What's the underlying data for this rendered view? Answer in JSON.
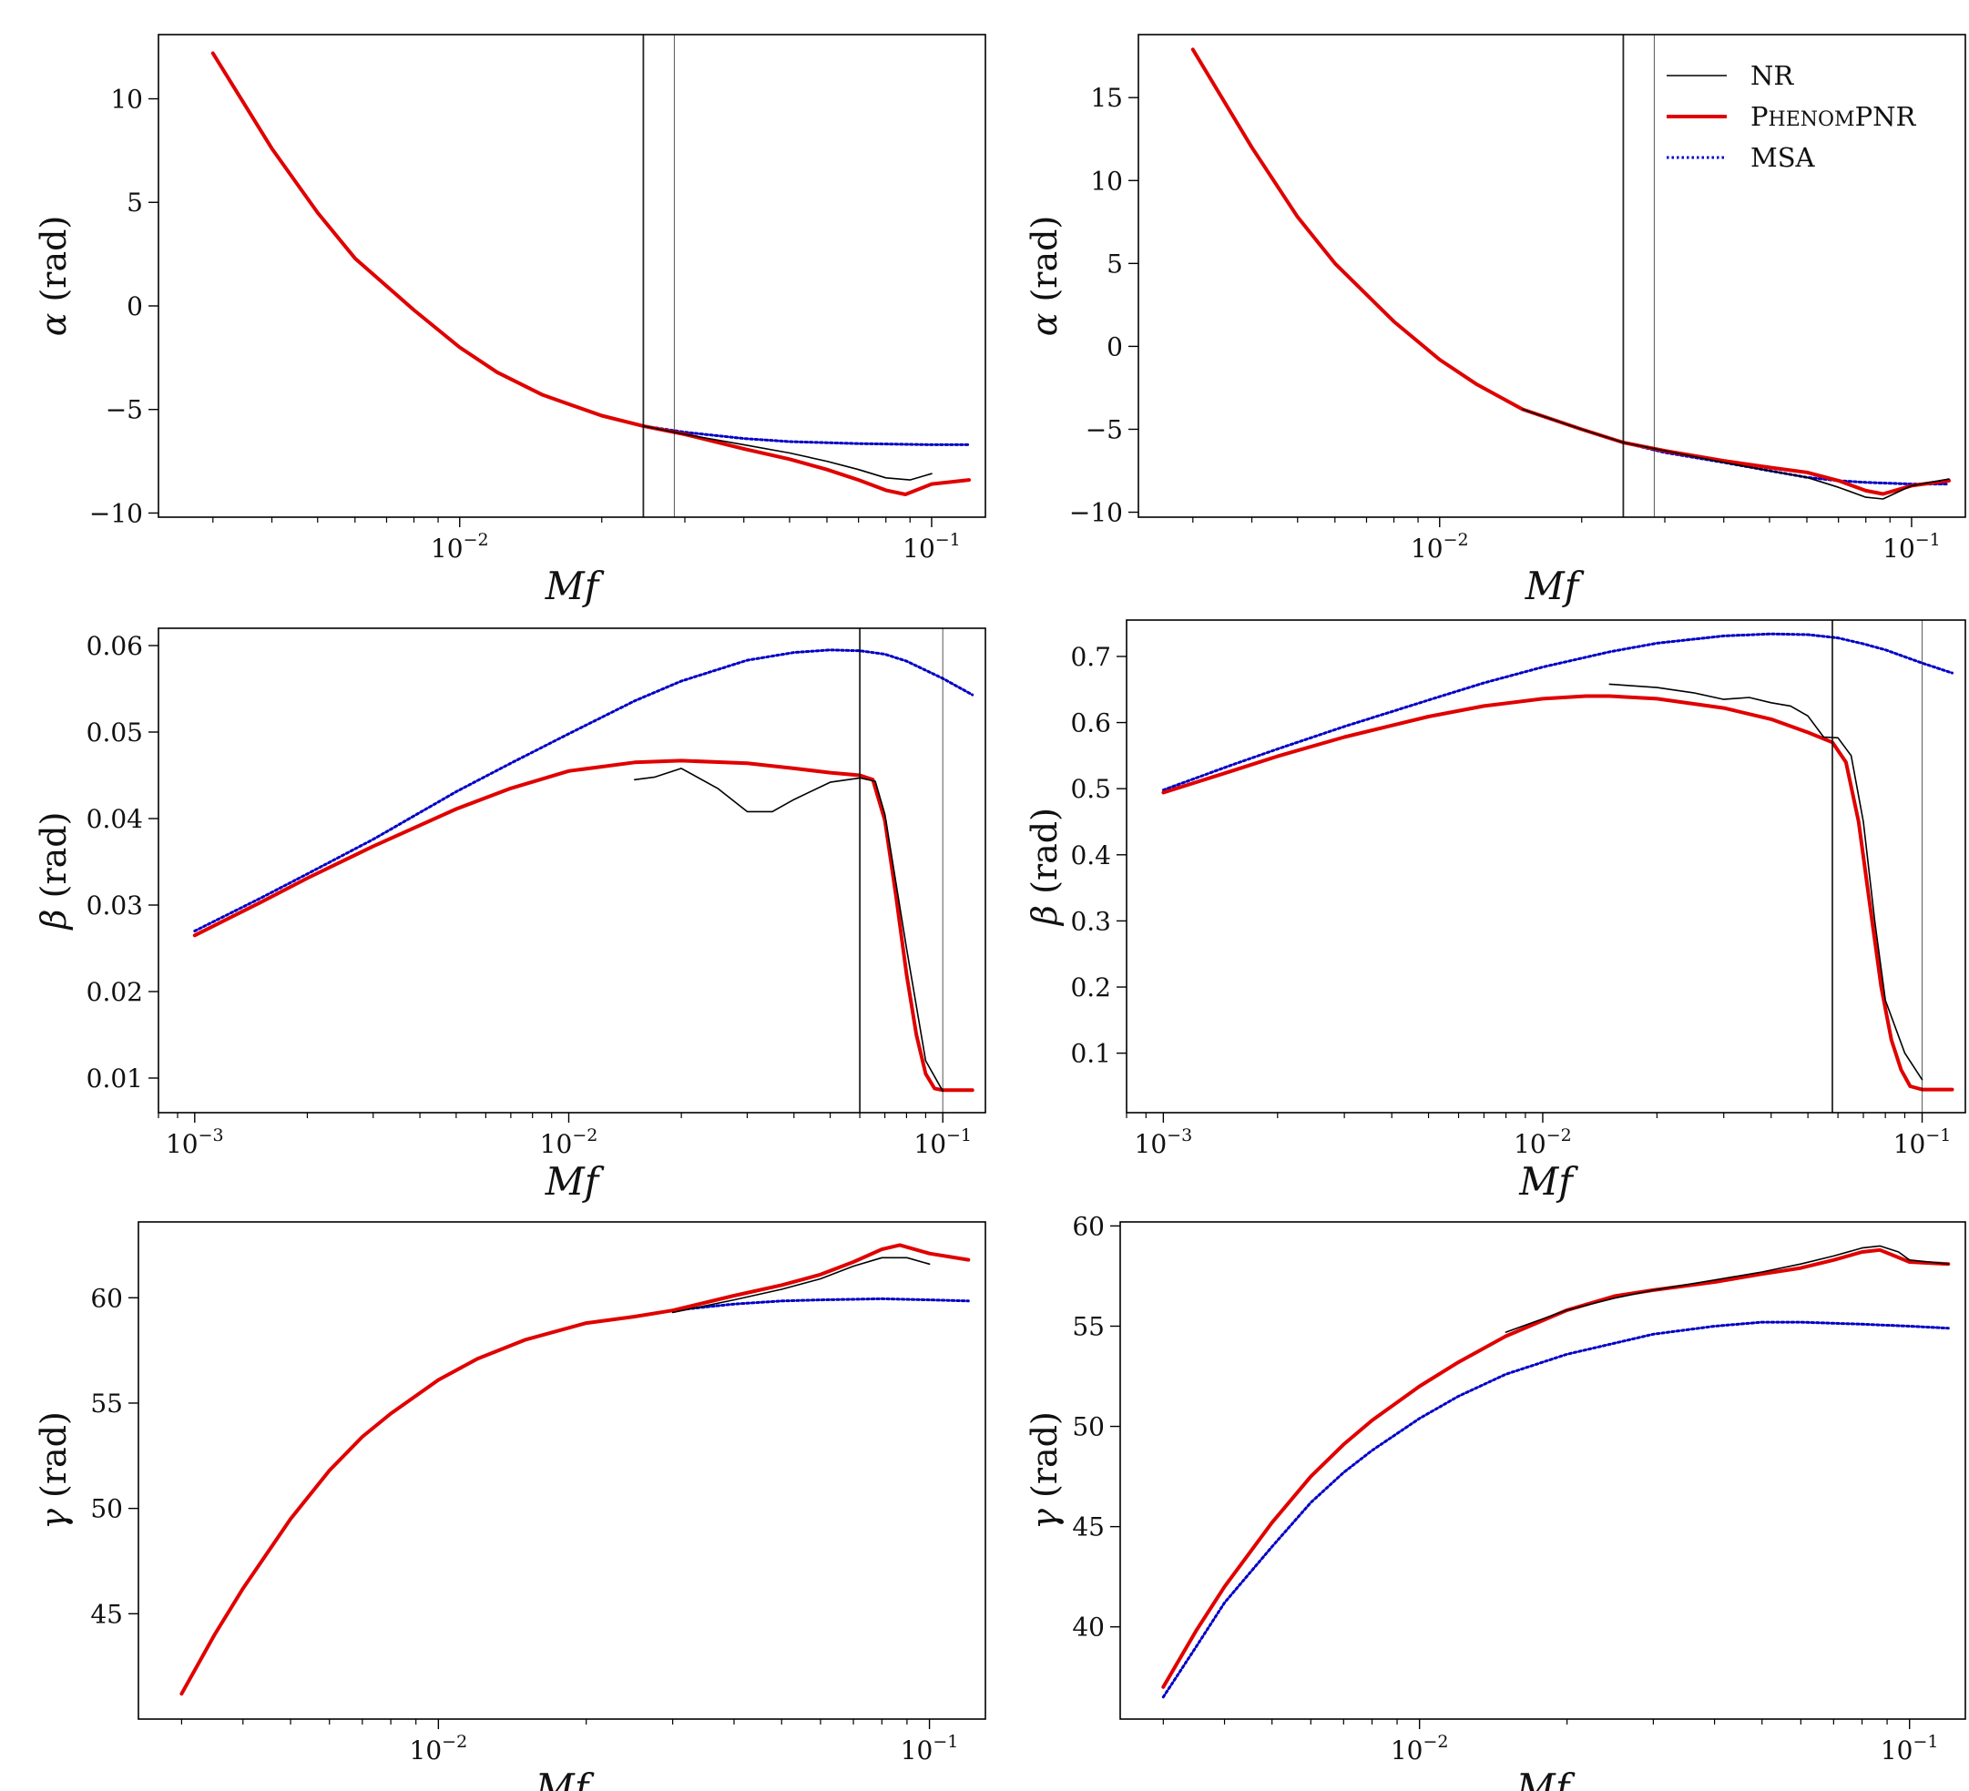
{
  "legend": {
    "entries": [
      {
        "label": "NR",
        "color": "#000000",
        "style": "solid-thin"
      },
      {
        "label": "PhenomPNR",
        "color": "#e00000",
        "style": "solid-thick"
      },
      {
        "label": "MSA",
        "color": "#0000c8",
        "style": "dotted"
      }
    ],
    "placement": "top-right"
  },
  "chart_data": [
    {
      "type": "line",
      "panel": "top-left",
      "xscale": "log",
      "xlabel": "Mf",
      "ylabel": "α (rad)",
      "xlim": [
        0.0023,
        0.13
      ],
      "ylim": [
        -10.2,
        13.1
      ],
      "xticks": [
        0.01,
        0.1
      ],
      "yticks": [
        10,
        5,
        0,
        -5,
        -10
      ],
      "vlines": [
        0.0245,
        0.0285
      ],
      "series": [
        {
          "name": "NR",
          "x": [
            0.0245,
            0.03,
            0.04,
            0.05,
            0.06,
            0.07,
            0.08,
            0.09,
            0.1
          ],
          "y": [
            -5.8,
            -6.2,
            -6.7,
            -7.1,
            -7.5,
            -7.9,
            -8.3,
            -8.4,
            -8.1
          ]
        },
        {
          "name": "PhenomPNR",
          "x": [
            0.003,
            0.004,
            0.005,
            0.006,
            0.008,
            0.01,
            0.012,
            0.015,
            0.02,
            0.0245,
            0.03,
            0.04,
            0.05,
            0.06,
            0.07,
            0.08,
            0.088,
            0.1,
            0.12
          ],
          "y": [
            12.2,
            7.6,
            4.5,
            2.3,
            -0.2,
            -2.0,
            -3.2,
            -4.3,
            -5.3,
            -5.8,
            -6.2,
            -6.9,
            -7.4,
            -7.9,
            -8.4,
            -8.9,
            -9.1,
            -8.6,
            -8.4
          ]
        },
        {
          "name": "MSA",
          "x": [
            0.003,
            0.004,
            0.005,
            0.006,
            0.008,
            0.01,
            0.012,
            0.015,
            0.02,
            0.0245,
            0.03,
            0.04,
            0.05,
            0.07,
            0.1,
            0.12
          ],
          "y": [
            12.2,
            7.6,
            4.5,
            2.3,
            -0.2,
            -2.0,
            -3.2,
            -4.3,
            -5.3,
            -5.8,
            -6.1,
            -6.4,
            -6.55,
            -6.65,
            -6.7,
            -6.7
          ]
        }
      ]
    },
    {
      "type": "line",
      "panel": "top-right",
      "xscale": "log",
      "xlabel": "Mf",
      "ylabel": "α (rad)",
      "xlim": [
        0.0023,
        0.13
      ],
      "ylim": [
        -10.3,
        18.8
      ],
      "xticks": [
        0.01,
        0.1
      ],
      "yticks": [
        15,
        10,
        5,
        0,
        -5,
        -10
      ],
      "vlines": [
        0.0245,
        0.0285
      ],
      "series": [
        {
          "name": "NR",
          "x": [
            0.015,
            0.02,
            0.0245,
            0.03,
            0.04,
            0.05,
            0.06,
            0.07,
            0.08,
            0.087,
            0.1,
            0.12
          ],
          "y": [
            -3.8,
            -5.0,
            -5.8,
            -6.3,
            -7.0,
            -7.5,
            -7.9,
            -8.5,
            -9.1,
            -9.2,
            -8.4,
            -8.0
          ]
        },
        {
          "name": "PhenomPNR",
          "x": [
            0.003,
            0.004,
            0.005,
            0.006,
            0.008,
            0.01,
            0.012,
            0.015,
            0.02,
            0.0245,
            0.03,
            0.04,
            0.05,
            0.06,
            0.07,
            0.08,
            0.087,
            0.1,
            0.12
          ],
          "y": [
            17.9,
            12.0,
            7.8,
            5.0,
            1.5,
            -0.8,
            -2.3,
            -3.8,
            -5.0,
            -5.8,
            -6.3,
            -6.9,
            -7.3,
            -7.6,
            -8.1,
            -8.7,
            -8.9,
            -8.4,
            -8.1
          ]
        },
        {
          "name": "MSA",
          "x": [
            0.003,
            0.004,
            0.005,
            0.006,
            0.008,
            0.01,
            0.012,
            0.015,
            0.02,
            0.0245,
            0.03,
            0.04,
            0.05,
            0.06,
            0.07,
            0.08,
            0.1,
            0.12
          ],
          "y": [
            17.9,
            12.0,
            7.8,
            5.0,
            1.5,
            -0.8,
            -2.3,
            -3.8,
            -5.0,
            -5.8,
            -6.4,
            -7.0,
            -7.5,
            -7.9,
            -8.1,
            -8.2,
            -8.3,
            -8.3
          ]
        }
      ]
    },
    {
      "type": "line",
      "panel": "middle-left",
      "xscale": "log",
      "xlabel": "Mf",
      "ylabel": "β (rad)",
      "xlim": [
        0.0008,
        0.13
      ],
      "ylim": [
        0.006,
        0.062
      ],
      "xticks": [
        0.001,
        0.01,
        0.1
      ],
      "yticks": [
        0.06,
        0.05,
        0.04,
        0.03,
        0.02,
        0.01
      ],
      "vlines": [
        0.06,
        0.1
      ],
      "series": [
        {
          "name": "NR",
          "x": [
            0.015,
            0.017,
            0.02,
            0.025,
            0.03,
            0.035,
            0.04,
            0.05,
            0.06,
            0.066,
            0.07,
            0.08,
            0.09,
            0.1
          ],
          "y": [
            0.0445,
            0.0448,
            0.0458,
            0.0435,
            0.0408,
            0.0408,
            0.0422,
            0.0442,
            0.0447,
            0.0443,
            0.0405,
            0.025,
            0.012,
            0.0085
          ]
        },
        {
          "name": "PhenomPNR",
          "x": [
            0.001,
            0.0015,
            0.002,
            0.003,
            0.005,
            0.007,
            0.01,
            0.015,
            0.02,
            0.03,
            0.04,
            0.05,
            0.06,
            0.065,
            0.07,
            0.075,
            0.08,
            0.085,
            0.09,
            0.095,
            0.1,
            0.12
          ],
          "y": [
            0.0265,
            0.0303,
            0.0331,
            0.0368,
            0.0411,
            0.0435,
            0.0455,
            0.0465,
            0.0467,
            0.0464,
            0.0458,
            0.0453,
            0.045,
            0.0445,
            0.0398,
            0.031,
            0.022,
            0.015,
            0.0105,
            0.0088,
            0.0086,
            0.0086
          ]
        },
        {
          "name": "MSA",
          "x": [
            0.001,
            0.0015,
            0.002,
            0.003,
            0.005,
            0.007,
            0.01,
            0.015,
            0.02,
            0.03,
            0.04,
            0.05,
            0.06,
            0.07,
            0.08,
            0.1,
            0.12
          ],
          "y": [
            0.027,
            0.0308,
            0.0336,
            0.0376,
            0.0431,
            0.0464,
            0.0498,
            0.0536,
            0.0559,
            0.0583,
            0.0592,
            0.0595,
            0.0594,
            0.059,
            0.0582,
            0.0562,
            0.0543
          ]
        }
      ]
    },
    {
      "type": "line",
      "panel": "middle-right",
      "xscale": "log",
      "xlabel": "Mf",
      "ylabel": "β (rad)",
      "xlim": [
        0.0008,
        0.13
      ],
      "ylim": [
        0.01,
        0.755
      ],
      "xticks": [
        0.001,
        0.01,
        0.1
      ],
      "yticks": [
        0.7,
        0.6,
        0.5,
        0.4,
        0.3,
        0.2,
        0.1
      ],
      "vlines": [
        0.058,
        0.1
      ],
      "series": [
        {
          "name": "NR",
          "x": [
            0.015,
            0.02,
            0.025,
            0.03,
            0.035,
            0.04,
            0.045,
            0.05,
            0.055,
            0.06,
            0.065,
            0.07,
            0.075,
            0.08,
            0.09,
            0.1
          ],
          "y": [
            0.658,
            0.653,
            0.645,
            0.635,
            0.638,
            0.63,
            0.625,
            0.61,
            0.578,
            0.577,
            0.55,
            0.45,
            0.3,
            0.18,
            0.1,
            0.06
          ]
        },
        {
          "name": "PhenomPNR",
          "x": [
            0.001,
            0.0015,
            0.002,
            0.003,
            0.005,
            0.007,
            0.01,
            0.013,
            0.015,
            0.02,
            0.03,
            0.04,
            0.05,
            0.058,
            0.063,
            0.068,
            0.073,
            0.078,
            0.083,
            0.088,
            0.093,
            0.1,
            0.12
          ],
          "y": [
            0.494,
            0.526,
            0.549,
            0.578,
            0.609,
            0.625,
            0.636,
            0.64,
            0.64,
            0.636,
            0.622,
            0.605,
            0.585,
            0.57,
            0.54,
            0.45,
            0.32,
            0.2,
            0.12,
            0.075,
            0.05,
            0.045,
            0.045
          ]
        },
        {
          "name": "MSA",
          "x": [
            0.001,
            0.0015,
            0.002,
            0.003,
            0.005,
            0.007,
            0.01,
            0.015,
            0.02,
            0.03,
            0.04,
            0.05,
            0.06,
            0.07,
            0.08,
            0.1,
            0.12
          ],
          "y": [
            0.498,
            0.535,
            0.56,
            0.594,
            0.634,
            0.66,
            0.684,
            0.707,
            0.72,
            0.731,
            0.734,
            0.733,
            0.728,
            0.719,
            0.71,
            0.69,
            0.675
          ]
        }
      ]
    },
    {
      "type": "line",
      "panel": "bottom-left",
      "xscale": "log",
      "xlabel": "Mf",
      "ylabel": "γ (rad)",
      "xlim": [
        0.00245,
        0.13
      ],
      "ylim": [
        40.0,
        63.6
      ],
      "xticks": [
        0.01,
        0.1
      ],
      "yticks": [
        60,
        55,
        50,
        45
      ],
      "vlines": [],
      "series": [
        {
          "name": "NR",
          "x": [
            0.03,
            0.04,
            0.05,
            0.06,
            0.07,
            0.08,
            0.09,
            0.1
          ],
          "y": [
            59.3,
            59.9,
            60.4,
            60.9,
            61.5,
            61.9,
            61.9,
            61.6
          ]
        },
        {
          "name": "PhenomPNR",
          "x": [
            0.003,
            0.0035,
            0.004,
            0.005,
            0.006,
            0.007,
            0.008,
            0.01,
            0.012,
            0.015,
            0.02,
            0.025,
            0.03,
            0.04,
            0.05,
            0.06,
            0.07,
            0.08,
            0.087,
            0.1,
            0.12
          ],
          "y": [
            41.2,
            44.0,
            46.2,
            49.5,
            51.8,
            53.4,
            54.5,
            56.1,
            57.1,
            58.0,
            58.8,
            59.1,
            59.4,
            60.1,
            60.6,
            61.1,
            61.7,
            62.3,
            62.5,
            62.1,
            61.8
          ]
        },
        {
          "name": "MSA",
          "x": [
            0.003,
            0.0035,
            0.004,
            0.005,
            0.006,
            0.007,
            0.008,
            0.01,
            0.012,
            0.015,
            0.02,
            0.025,
            0.03,
            0.04,
            0.05,
            0.06,
            0.08,
            0.1,
            0.12
          ],
          "y": [
            41.2,
            44.0,
            46.2,
            49.5,
            51.8,
            53.4,
            54.5,
            56.1,
            57.1,
            58.0,
            58.8,
            59.1,
            59.4,
            59.7,
            59.85,
            59.9,
            59.95,
            59.9,
            59.85
          ]
        }
      ]
    },
    {
      "type": "line",
      "panel": "bottom-right",
      "xscale": "log",
      "xlabel": "Mf",
      "ylabel": "γ (rad)",
      "xlim": [
        0.00245,
        0.13
      ],
      "ylim": [
        35.4,
        60.2
      ],
      "xticks": [
        0.01,
        0.1
      ],
      "yticks": [
        60,
        55,
        50,
        45,
        40
      ],
      "vlines": [],
      "series": [
        {
          "name": "NR",
          "x": [
            0.015,
            0.02,
            0.025,
            0.03,
            0.04,
            0.05,
            0.06,
            0.07,
            0.08,
            0.087,
            0.095,
            0.1,
            0.12
          ],
          "y": [
            54.7,
            55.8,
            56.4,
            56.8,
            57.3,
            57.7,
            58.1,
            58.5,
            58.9,
            59.0,
            58.7,
            58.3,
            58.1
          ]
        },
        {
          "name": "PhenomPNR",
          "x": [
            0.003,
            0.0035,
            0.004,
            0.005,
            0.006,
            0.007,
            0.008,
            0.01,
            0.012,
            0.015,
            0.02,
            0.025,
            0.03,
            0.04,
            0.05,
            0.06,
            0.07,
            0.08,
            0.087,
            0.1,
            0.12
          ],
          "y": [
            37.0,
            39.8,
            42.0,
            45.2,
            47.5,
            49.1,
            50.3,
            52.0,
            53.2,
            54.5,
            55.8,
            56.5,
            56.8,
            57.2,
            57.6,
            57.9,
            58.3,
            58.7,
            58.8,
            58.2,
            58.1
          ]
        },
        {
          "name": "MSA",
          "x": [
            0.003,
            0.0035,
            0.004,
            0.005,
            0.006,
            0.007,
            0.008,
            0.01,
            0.012,
            0.015,
            0.02,
            0.03,
            0.04,
            0.05,
            0.06,
            0.08,
            0.1,
            0.12
          ],
          "y": [
            36.5,
            39.0,
            41.2,
            44.0,
            46.2,
            47.7,
            48.8,
            50.4,
            51.5,
            52.6,
            53.6,
            54.6,
            55.0,
            55.2,
            55.2,
            55.1,
            55.0,
            54.9
          ]
        }
      ]
    }
  ]
}
